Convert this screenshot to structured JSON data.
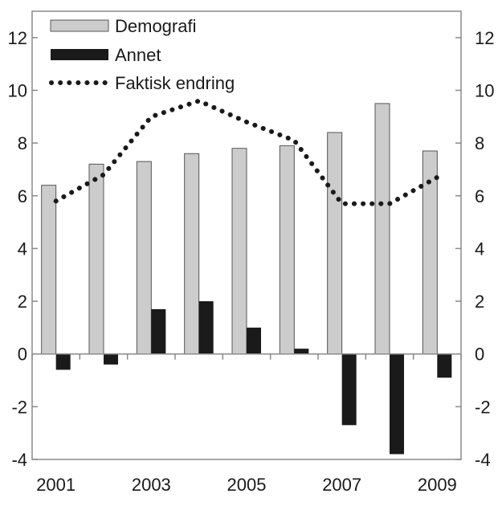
{
  "chart_data": {
    "type": "bar",
    "title": "",
    "xlabel": "",
    "ylabel": "",
    "ylim": [
      -4,
      13
    ],
    "yticks": [
      -4,
      -2,
      0,
      2,
      4,
      6,
      8,
      10,
      12
    ],
    "x": [
      2001,
      2002,
      2003,
      2004,
      2005,
      2006,
      2007,
      2008,
      2009
    ],
    "xtick_labels": [
      "2001",
      "2003",
      "2005",
      "2007",
      "2009"
    ],
    "xtick_values": [
      2001,
      2003,
      2005,
      2007,
      2009
    ],
    "grid": false,
    "secondary_y_axis": true,
    "legend_position": "top-left",
    "series": [
      {
        "name": "Demografi",
        "type": "bar",
        "color": "#cccccc",
        "values": [
          6.4,
          7.2,
          7.3,
          7.6,
          7.8,
          7.9,
          8.4,
          9.5,
          7.7
        ]
      },
      {
        "name": "Annet",
        "type": "bar",
        "color": "#1a1a1a",
        "values": [
          -0.6,
          -0.4,
          1.7,
          2.0,
          1.0,
          0.2,
          -2.7,
          -3.8,
          -0.9
        ]
      },
      {
        "name": "Faktisk endring",
        "type": "line",
        "style": "dotted",
        "color": "#1a1a1a",
        "values": [
          5.8,
          6.8,
          9.0,
          9.6,
          8.8,
          8.1,
          5.7,
          5.7,
          6.7
        ]
      }
    ]
  }
}
